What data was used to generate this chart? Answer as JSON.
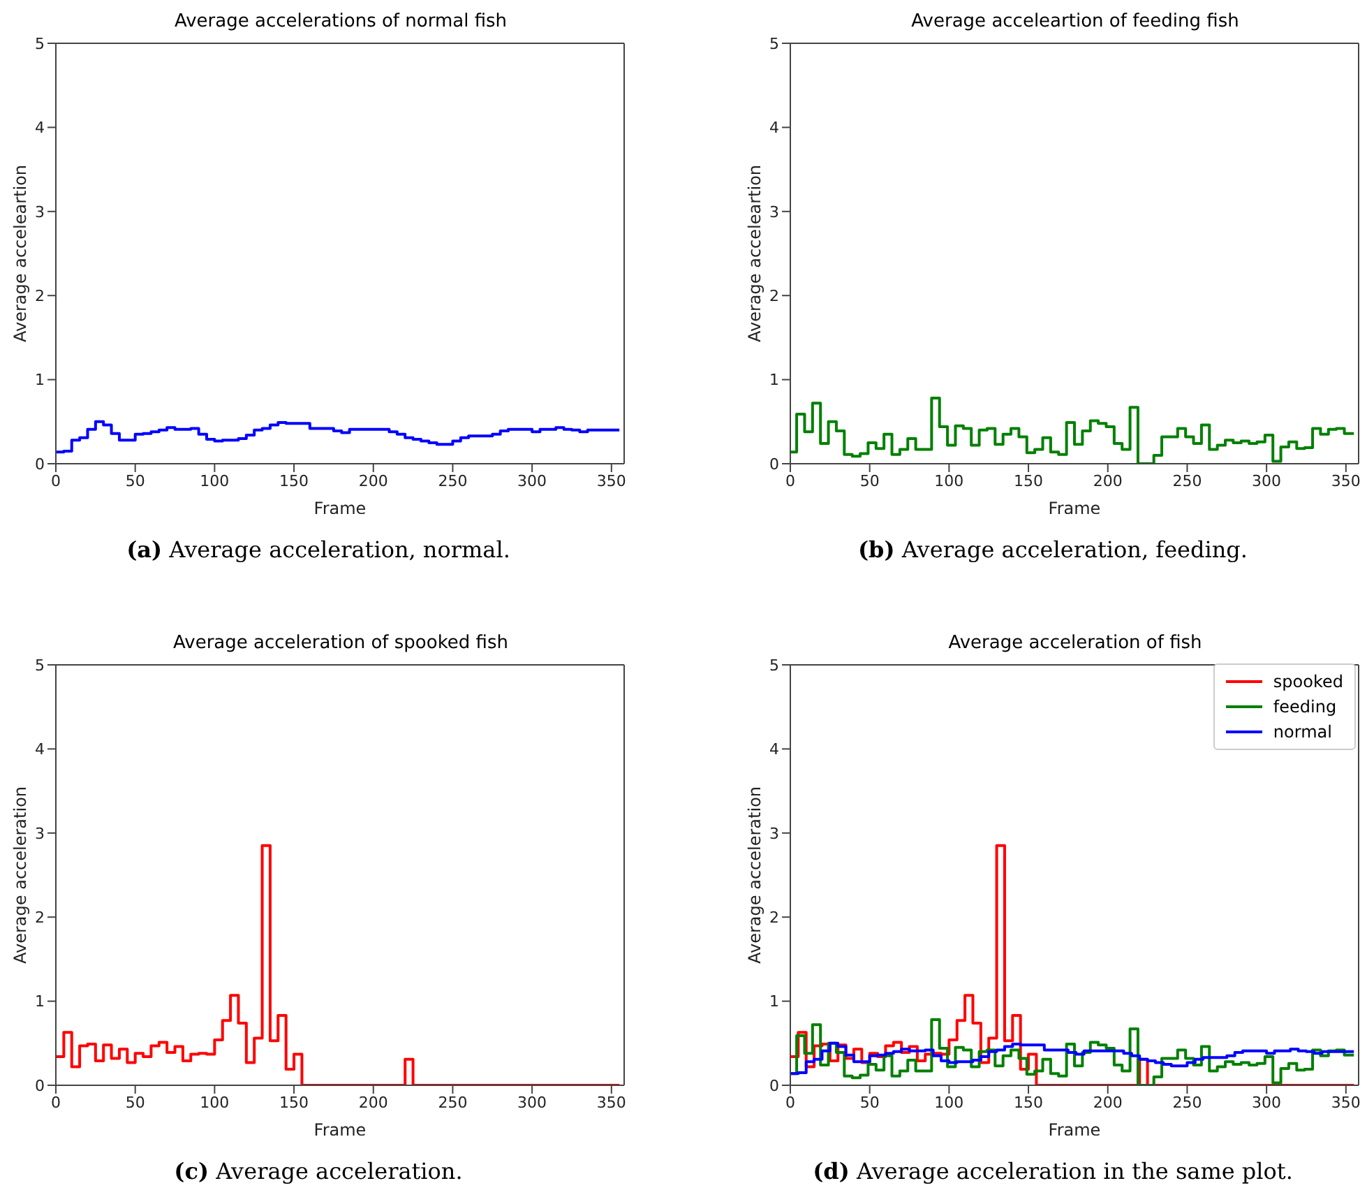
{
  "chart_data": [
    {
      "type": "step",
      "title": "Average accelerations of normal fish",
      "xlabel": "Frame",
      "ylabel": "Average acceleartion",
      "xlim": [
        0,
        358
      ],
      "xticks": [
        0,
        50,
        100,
        150,
        200,
        250,
        300,
        350
      ],
      "ylim": [
        0,
        5
      ],
      "yticks": [
        0,
        1,
        2,
        3,
        4,
        5
      ],
      "annotations": [
        "(a) Average acceleration, normal."
      ],
      "x": [
        0,
        5,
        10,
        15,
        20,
        25,
        30,
        35,
        40,
        45,
        50,
        55,
        60,
        65,
        70,
        75,
        80,
        85,
        90,
        95,
        100,
        105,
        110,
        115,
        120,
        125,
        130,
        135,
        140,
        145,
        150,
        155,
        160,
        165,
        170,
        175,
        180,
        185,
        190,
        195,
        200,
        205,
        210,
        215,
        220,
        225,
        230,
        235,
        240,
        245,
        250,
        255,
        260,
        265,
        270,
        275,
        280,
        285,
        290,
        295,
        300,
        305,
        310,
        315,
        320,
        325,
        330,
        335,
        340,
        345,
        350,
        355
      ],
      "series": [
        {
          "color": "#0000ff",
          "values": [
            0.14,
            0.15,
            0.28,
            0.31,
            0.41,
            0.5,
            0.46,
            0.36,
            0.28,
            0.28,
            0.35,
            0.36,
            0.38,
            0.4,
            0.43,
            0.41,
            0.41,
            0.42,
            0.35,
            0.29,
            0.27,
            0.28,
            0.28,
            0.3,
            0.34,
            0.4,
            0.42,
            0.46,
            0.49,
            0.48,
            0.48,
            0.48,
            0.42,
            0.42,
            0.42,
            0.39,
            0.37,
            0.41,
            0.41,
            0.41,
            0.41,
            0.41,
            0.38,
            0.35,
            0.31,
            0.29,
            0.27,
            0.25,
            0.23,
            0.23,
            0.27,
            0.31,
            0.33,
            0.33,
            0.33,
            0.35,
            0.39,
            0.41,
            0.41,
            0.41,
            0.38,
            0.41,
            0.41,
            0.43,
            0.41,
            0.4,
            0.38,
            0.4,
            0.4,
            0.4,
            0.4,
            0.4
          ]
        }
      ]
    },
    {
      "type": "step",
      "title": "Average acceleartion of feeding fish",
      "xlabel": "Frame",
      "ylabel": "Average acceleartion",
      "xlim": [
        0,
        358
      ],
      "xticks": [
        0,
        50,
        100,
        150,
        200,
        250,
        300,
        350
      ],
      "ylim": [
        0,
        5
      ],
      "yticks": [
        0,
        1,
        2,
        3,
        4,
        5
      ],
      "annotations": [
        "(b) Average acceleration, feeding."
      ],
      "series": [
        {
          "color": "#008000",
          "x": [
            0,
            4,
            9,
            14,
            19,
            24,
            29,
            34,
            39,
            44,
            49,
            54,
            59,
            64,
            69,
            74,
            79,
            84,
            89,
            94,
            99,
            104,
            109,
            114,
            119,
            124,
            129,
            134,
            139,
            144,
            149,
            154,
            159,
            164,
            169,
            174,
            179,
            184,
            189,
            194,
            199,
            204,
            209,
            214,
            219,
            224,
            229,
            234,
            239,
            244,
            249,
            254,
            259,
            264,
            269,
            274,
            279,
            284,
            289,
            294,
            299,
            304,
            309,
            314,
            319,
            324,
            329,
            334,
            339,
            344,
            349,
            355
          ],
          "values": [
            0.14,
            0.59,
            0.38,
            0.72,
            0.24,
            0.5,
            0.39,
            0.11,
            0.09,
            0.12,
            0.25,
            0.18,
            0.35,
            0.11,
            0.17,
            0.3,
            0.17,
            0.17,
            0.78,
            0.44,
            0.22,
            0.45,
            0.42,
            0.22,
            0.4,
            0.42,
            0.23,
            0.35,
            0.42,
            0.32,
            0.13,
            0.17,
            0.31,
            0.14,
            0.11,
            0.49,
            0.23,
            0.39,
            0.51,
            0.48,
            0.44,
            0.24,
            0.17,
            0.67,
            0,
            0,
            0.1,
            0.32,
            0.32,
            0.42,
            0.32,
            0.24,
            0.46,
            0.17,
            0.22,
            0.28,
            0.25,
            0.27,
            0.24,
            0.26,
            0.34,
            0.03,
            0.2,
            0.26,
            0.18,
            0.19,
            0.42,
            0.35,
            0.41,
            0.42,
            0.36,
            0.36
          ]
        }
      ]
    },
    {
      "type": "step",
      "title": "Average acceleration of spooked fish",
      "xlabel": "Frame",
      "ylabel": "Average acceleration",
      "xlim": [
        0,
        358
      ],
      "xticks": [
        0,
        50,
        100,
        150,
        200,
        250,
        300,
        350
      ],
      "ylim": [
        0,
        5
      ],
      "yticks": [
        0,
        1,
        2,
        3,
        4,
        5
      ],
      "annotations": [
        "(c) Average acceleration."
      ],
      "x": [
        0,
        5,
        10,
        15,
        20,
        25,
        30,
        35,
        40,
        45,
        50,
        55,
        60,
        65,
        70,
        75,
        80,
        85,
        90,
        95,
        100,
        105,
        110,
        115,
        120,
        125,
        130,
        135,
        140,
        145,
        150,
        155,
        160,
        165,
        170,
        175,
        180,
        185,
        190,
        195,
        200,
        205,
        210,
        215,
        220,
        225,
        230,
        235,
        240,
        245,
        250,
        255,
        260,
        265,
        270,
        275,
        280,
        285,
        290,
        295,
        300,
        305,
        310,
        315,
        320,
        325,
        330,
        335,
        340,
        345,
        350,
        355
      ],
      "series": [
        {
          "color": "#ff0000",
          "values": [
            0.34,
            0.63,
            0.22,
            0.47,
            0.49,
            0.29,
            0.48,
            0.32,
            0.43,
            0.27,
            0.38,
            0.34,
            0.47,
            0.51,
            0.39,
            0.46,
            0.29,
            0.37,
            0.38,
            0.37,
            0.54,
            0.77,
            1.07,
            0.74,
            0.27,
            0.56,
            2.85,
            0.53,
            0.83,
            0.19,
            0.37,
            0,
            0,
            0,
            0,
            0,
            0,
            0,
            0,
            0,
            0,
            0,
            0,
            0,
            0.31,
            0,
            0,
            0,
            0,
            0,
            0,
            0,
            0,
            0,
            0,
            0,
            0,
            0,
            0,
            0,
            0,
            0,
            0,
            0,
            0,
            0,
            0,
            0,
            0,
            0,
            0,
            0
          ]
        }
      ]
    },
    {
      "type": "step",
      "title": "Average acceleration of fish",
      "xlabel": "Frame",
      "ylabel": "Average acceleration",
      "xlim": [
        0,
        358
      ],
      "xticks": [
        0,
        50,
        100,
        150,
        200,
        250,
        300,
        350
      ],
      "ylim": [
        0,
        5
      ],
      "yticks": [
        0,
        1,
        2,
        3,
        4,
        5
      ],
      "legend": "top right",
      "annotations": [
        "(d) Average acceleration in the same plot."
      ],
      "x": [
        0,
        5,
        10,
        15,
        20,
        25,
        30,
        35,
        40,
        45,
        50,
        55,
        60,
        65,
        70,
        75,
        80,
        85,
        90,
        95,
        100,
        105,
        110,
        115,
        120,
        125,
        130,
        135,
        140,
        145,
        150,
        155,
        160,
        165,
        170,
        175,
        180,
        185,
        190,
        195,
        200,
        205,
        210,
        215,
        220,
        225,
        230,
        235,
        240,
        245,
        250,
        255,
        260,
        265,
        270,
        275,
        280,
        285,
        290,
        295,
        300,
        305,
        310,
        315,
        320,
        325,
        330,
        335,
        340,
        345,
        350,
        355
      ],
      "series": [
        {
          "name": "spooked",
          "color": "#ff0000",
          "values": [
            0.34,
            0.63,
            0.22,
            0.47,
            0.49,
            0.29,
            0.48,
            0.32,
            0.43,
            0.27,
            0.38,
            0.34,
            0.47,
            0.51,
            0.39,
            0.46,
            0.29,
            0.37,
            0.38,
            0.37,
            0.54,
            0.77,
            1.07,
            0.74,
            0.27,
            0.56,
            2.85,
            0.53,
            0.83,
            0.19,
            0.37,
            0,
            0,
            0,
            0,
            0,
            0,
            0,
            0,
            0,
            0,
            0,
            0,
            0,
            0.31,
            0,
            0,
            0,
            0,
            0,
            0,
            0,
            0,
            0,
            0,
            0,
            0,
            0,
            0,
            0,
            0,
            0,
            0,
            0,
            0,
            0,
            0,
            0,
            0,
            0,
            0,
            0
          ]
        },
        {
          "name": "feeding",
          "color": "#008000",
          "x": [
            0,
            4,
            9,
            14,
            19,
            24,
            29,
            34,
            39,
            44,
            49,
            54,
            59,
            64,
            69,
            74,
            79,
            84,
            89,
            94,
            99,
            104,
            109,
            114,
            119,
            124,
            129,
            134,
            139,
            144,
            149,
            154,
            159,
            164,
            169,
            174,
            179,
            184,
            189,
            194,
            199,
            204,
            209,
            214,
            219,
            224,
            229,
            234,
            239,
            244,
            249,
            254,
            259,
            264,
            269,
            274,
            279,
            284,
            289,
            294,
            299,
            304,
            309,
            314,
            319,
            324,
            329,
            334,
            339,
            344,
            349,
            355
          ],
          "values": [
            0.14,
            0.59,
            0.38,
            0.72,
            0.24,
            0.5,
            0.39,
            0.11,
            0.09,
            0.12,
            0.25,
            0.18,
            0.35,
            0.11,
            0.17,
            0.3,
            0.17,
            0.17,
            0.78,
            0.44,
            0.22,
            0.45,
            0.42,
            0.22,
            0.4,
            0.42,
            0.23,
            0.35,
            0.42,
            0.32,
            0.13,
            0.17,
            0.31,
            0.14,
            0.11,
            0.49,
            0.23,
            0.39,
            0.51,
            0.48,
            0.44,
            0.24,
            0.17,
            0.67,
            0,
            0,
            0.1,
            0.32,
            0.32,
            0.42,
            0.32,
            0.24,
            0.46,
            0.17,
            0.22,
            0.28,
            0.25,
            0.27,
            0.24,
            0.26,
            0.34,
            0.03,
            0.2,
            0.26,
            0.18,
            0.19,
            0.42,
            0.35,
            0.41,
            0.42,
            0.36,
            0.36
          ]
        },
        {
          "name": "normal",
          "color": "#0000ff",
          "values": [
            0.14,
            0.15,
            0.28,
            0.31,
            0.41,
            0.5,
            0.46,
            0.36,
            0.28,
            0.28,
            0.35,
            0.36,
            0.38,
            0.4,
            0.43,
            0.41,
            0.41,
            0.42,
            0.35,
            0.29,
            0.27,
            0.28,
            0.28,
            0.3,
            0.34,
            0.4,
            0.42,
            0.46,
            0.49,
            0.48,
            0.48,
            0.48,
            0.42,
            0.42,
            0.42,
            0.39,
            0.37,
            0.41,
            0.41,
            0.41,
            0.41,
            0.41,
            0.38,
            0.35,
            0.31,
            0.29,
            0.27,
            0.25,
            0.23,
            0.23,
            0.27,
            0.31,
            0.33,
            0.33,
            0.33,
            0.35,
            0.39,
            0.41,
            0.41,
            0.41,
            0.38,
            0.41,
            0.41,
            0.43,
            0.41,
            0.4,
            0.38,
            0.4,
            0.4,
            0.4,
            0.4,
            0.4
          ]
        }
      ]
    }
  ]
}
